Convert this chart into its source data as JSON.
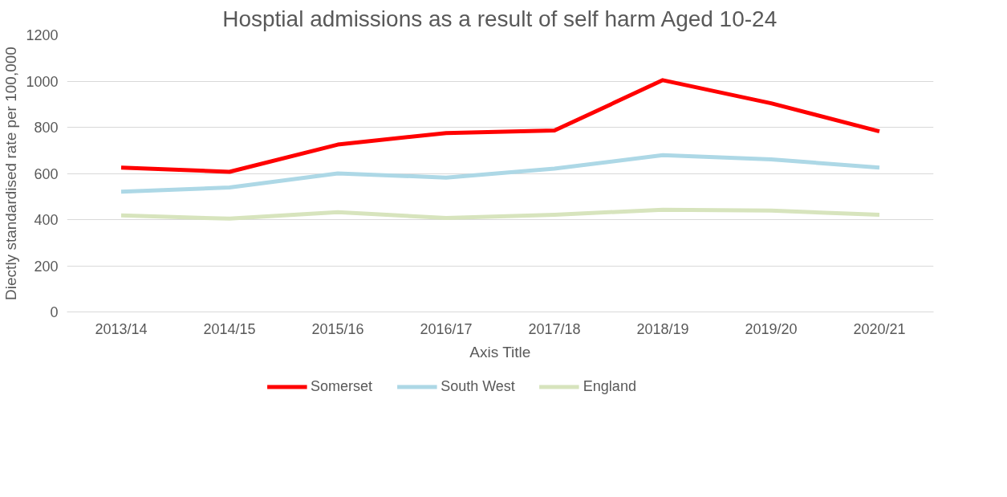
{
  "chart_data": {
    "type": "line",
    "title": "Hosptial admissions as a result of self harm Aged 10-24",
    "xlabel": "Axis Title",
    "ylabel": "Diectly standardised rate per 100,000",
    "categories": [
      "2013/14",
      "2014/15",
      "2015/16",
      "2016/17",
      "2017/18",
      "2018/19",
      "2019/20",
      "2020/21"
    ],
    "series": [
      {
        "name": "Somerset",
        "color": "#ff0000",
        "values": [
          625,
          607,
          725,
          775,
          786,
          1004,
          904,
          782
        ]
      },
      {
        "name": "South West",
        "color": "#add8e6",
        "values": [
          521,
          539,
          600,
          582,
          621,
          679,
          661,
          625
        ]
      },
      {
        "name": "England",
        "color": "#d7e4bd",
        "values": [
          418,
          404,
          432,
          407,
          421,
          443,
          439,
          421
        ]
      }
    ],
    "ylim": [
      0,
      1200
    ],
    "yticks": [
      0,
      200,
      400,
      600,
      800,
      1000,
      1200
    ],
    "grid": "y",
    "legend": "bottom",
    "marker": "none",
    "line_style": "solid"
  }
}
